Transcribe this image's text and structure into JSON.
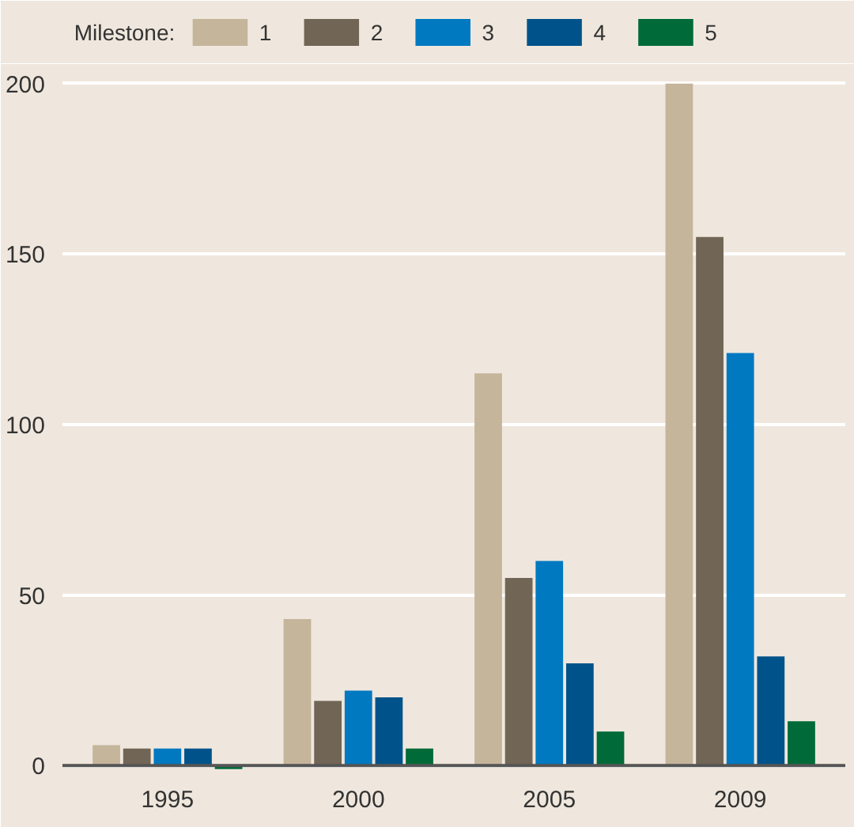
{
  "chart_data": {
    "type": "bar",
    "legend_title": "Milestone:",
    "categories": [
      "1995",
      "2000",
      "2005",
      "2009"
    ],
    "series": [
      {
        "name": "1",
        "color": "#c4b59b",
        "values": [
          6,
          43,
          115,
          200
        ]
      },
      {
        "name": "2",
        "color": "#716555",
        "values": [
          5,
          19,
          55,
          155
        ]
      },
      {
        "name": "3",
        "color": "#0079c1",
        "values": [
          5,
          22,
          60,
          121
        ]
      },
      {
        "name": "4",
        "color": "#00538a",
        "values": [
          5,
          20,
          30,
          32
        ]
      },
      {
        "name": "5",
        "color": "#006a38",
        "values": [
          -1,
          5,
          10,
          13
        ]
      }
    ],
    "ylim": [
      -2,
      202
    ],
    "yticks": [
      0,
      50,
      100,
      150,
      200
    ],
    "grid": "y",
    "legend": "top left"
  }
}
